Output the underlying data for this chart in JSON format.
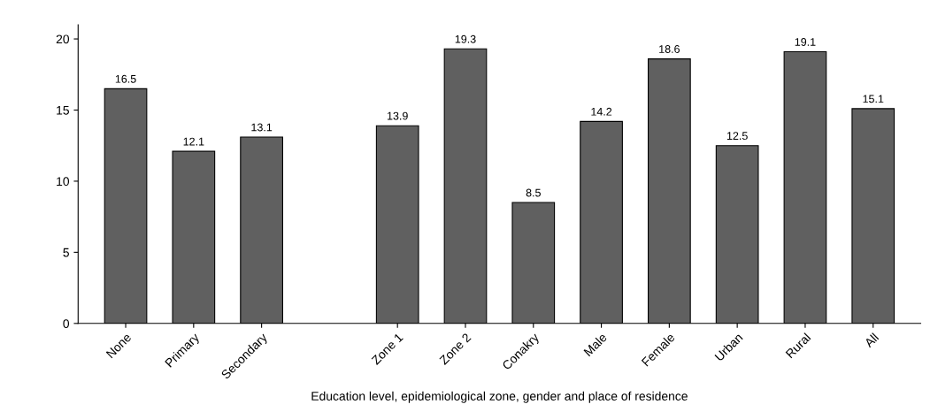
{
  "chart_data": {
    "type": "bar",
    "xlabel": "Education level, epidemiological zone, gender and place of residence",
    "categories": [
      "None",
      "Primary",
      "Secondary",
      null,
      "Zone 1",
      "Zone 2",
      "Conakry",
      "Male",
      "Female",
      "Urban",
      "Rural",
      "All"
    ],
    "values": [
      16.5,
      12.1,
      13.1,
      null,
      13.9,
      19.3,
      8.5,
      14.2,
      18.6,
      12.5,
      19.1,
      15.1
    ],
    "color": "#606060",
    "ylim": [
      0,
      21
    ],
    "yticks": [
      0,
      5,
      10,
      15,
      20
    ],
    "data_labels": true,
    "grid": false,
    "legend": false
  }
}
